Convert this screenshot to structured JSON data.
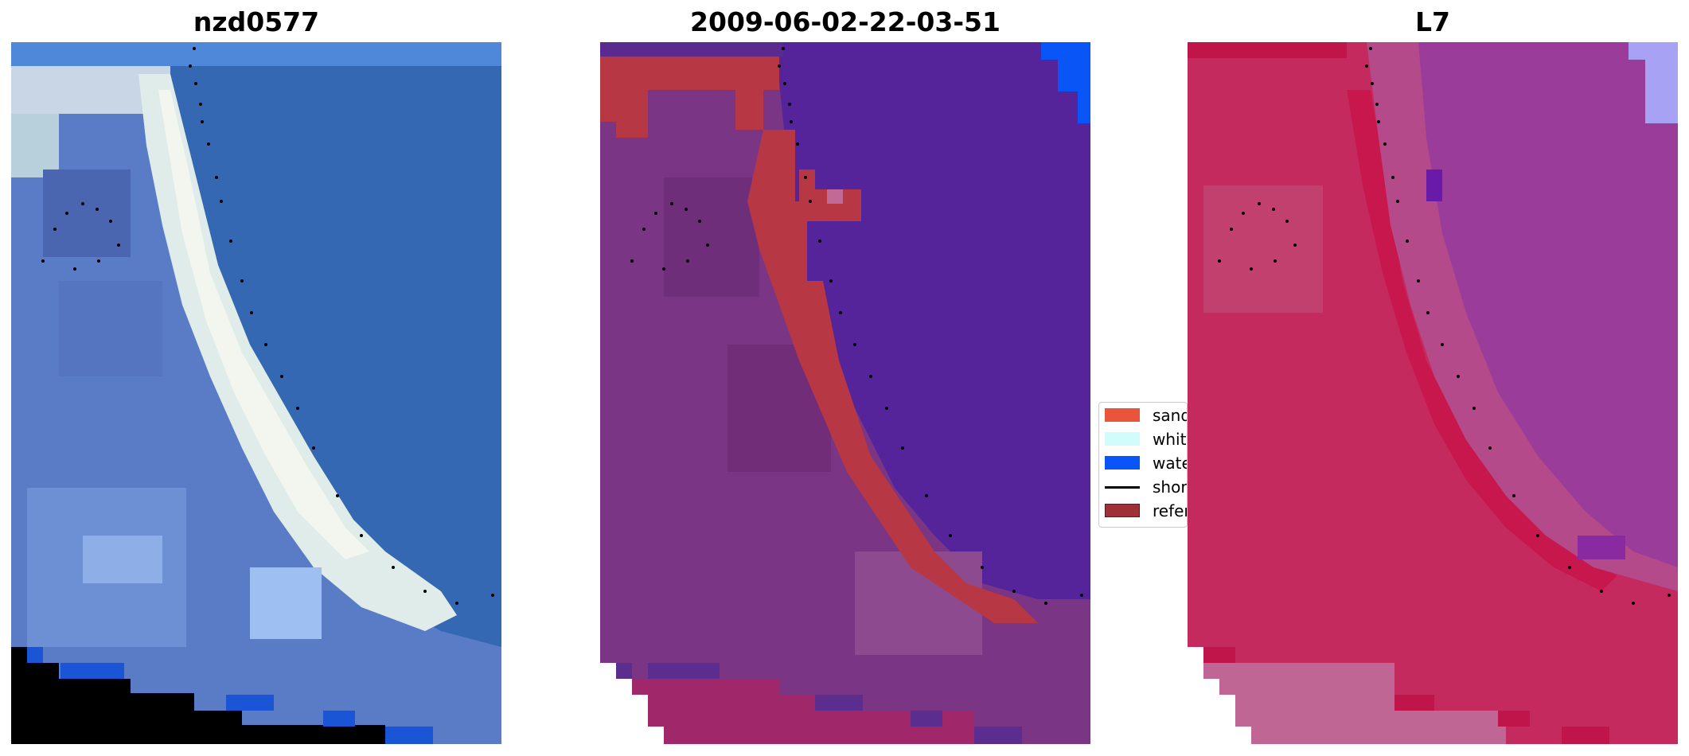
{
  "panels": [
    {
      "title": "nzd0577",
      "name": "rgb-image",
      "palette": {
        "base": "#3a6fb8",
        "sand": "#dfe8e8",
        "land": "#5b7cc4",
        "ocean": "#2f69b4",
        "edge": "#7ca7dd",
        "nodata": "#000000",
        "water": "#1a55d6"
      }
    },
    {
      "title": "2009-06-02-22-03-51",
      "name": "classified-image",
      "palette": {
        "base": "#5b2a8e",
        "sand": "#b73745",
        "land": "#7a3a88",
        "ocean": "#55249a",
        "edge": "#8e3a86",
        "nodata": "#ffffff",
        "water": "#0a55f5"
      }
    },
    {
      "title": "L7",
      "name": "index-image",
      "palette": {
        "base": "#b02a6a",
        "sand": "#c41f55",
        "land": "#c42a60",
        "ocean": "#9a3d9a",
        "edge": "#b8528c",
        "nodata": "#ffffff",
        "water": "#a8a2f5"
      }
    }
  ],
  "legend": {
    "items": [
      {
        "label": "sand",
        "color": "#e8553a",
        "kind": "swatch"
      },
      {
        "label": "whit",
        "color": "#d0fcfc",
        "kind": "swatch"
      },
      {
        "label": "wate",
        "color": "#0a55f5",
        "kind": "swatch"
      },
      {
        "label": "shore",
        "color": "#000000",
        "kind": "line"
      },
      {
        "label": "refer",
        "color": "#a03038",
        "kind": "swatch"
      }
    ]
  }
}
